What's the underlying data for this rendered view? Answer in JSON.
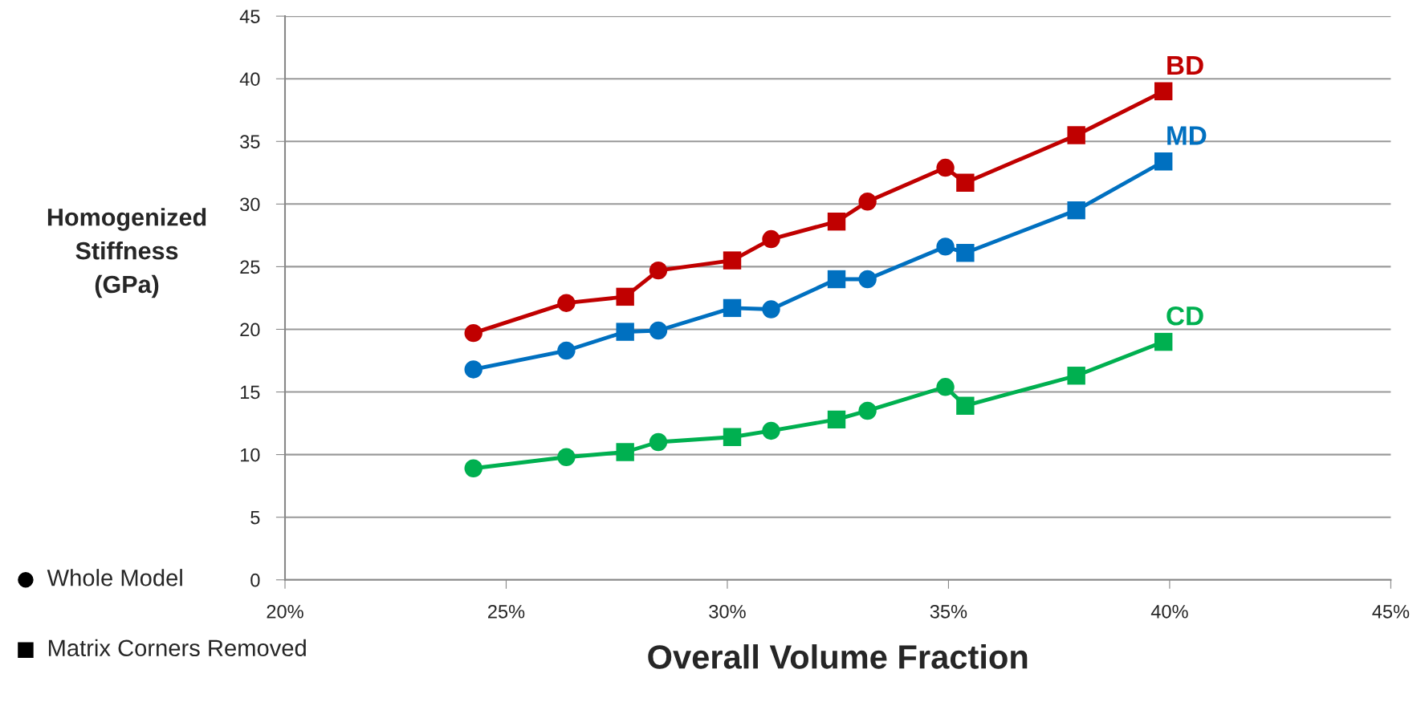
{
  "chart_data": {
    "type": "line",
    "xlabel": "Overall Volume Fraction",
    "ylabel": "Homogenized\nStiffness\n(GPa)",
    "x": [
      24.26,
      26.36,
      27.69,
      28.44,
      30.11,
      30.99,
      32.47,
      33.17,
      34.93,
      35.38,
      37.89,
      39.86
    ],
    "series": [
      {
        "name": "BD",
        "color": "#c00000",
        "values": [
          19.7,
          22.1,
          22.6,
          24.7,
          25.5,
          27.2,
          28.6,
          30.2,
          32.9,
          31.7,
          35.5,
          39.0
        ]
      },
      {
        "name": "MD",
        "color": "#0070c0",
        "values": [
          16.8,
          18.3,
          19.8,
          19.9,
          21.7,
          21.6,
          24.0,
          24.0,
          26.6,
          26.1,
          29.5,
          33.4
        ]
      },
      {
        "name": "CD",
        "color": "#00b050",
        "values": [
          8.9,
          9.8,
          10.2,
          11.0,
          11.4,
          11.9,
          12.8,
          13.5,
          15.4,
          13.9,
          16.3,
          19.0
        ]
      },
      {
        "type": "scatter",
        "marker": "circle",
        "color": "#000000",
        "x": [
          24.26,
          26.36,
          28.44,
          30.99,
          33.17,
          34.93,
          24.26,
          26.36,
          28.44,
          30.99,
          33.17,
          34.93,
          24.26,
          26.36,
          28.44,
          30.99,
          33.17,
          34.93
        ],
        "values": [
          19.7,
          22.1,
          24.7,
          27.2,
          30.2,
          32.9,
          16.8,
          18.3,
          19.9,
          21.6,
          24.0,
          26.6,
          8.9,
          9.8,
          11.0,
          11.9,
          13.5,
          15.4
        ],
        "colors": [
          "#c00000",
          "#c00000",
          "#c00000",
          "#c00000",
          "#c00000",
          "#c00000",
          "#0070c0",
          "#0070c0",
          "#0070c0",
          "#0070c0",
          "#0070c0",
          "#0070c0",
          "#00b050",
          "#00b050",
          "#00b050",
          "#00b050",
          "#00b050",
          "#00b050"
        ]
      },
      {
        "type": "scatter",
        "marker": "square",
        "color": "#000000",
        "x": [
          27.69,
          30.11,
          32.47,
          35.38,
          37.89,
          39.86,
          27.69,
          30.11,
          32.47,
          35.38,
          37.89,
          39.86,
          27.69,
          30.11,
          32.47,
          35.38,
          37.89,
          39.86
        ],
        "values": [
          22.6,
          25.5,
          28.6,
          31.7,
          35.5,
          39.0,
          19.8,
          21.7,
          24.0,
          26.1,
          29.5,
          33.4,
          10.2,
          11.4,
          12.8,
          13.9,
          16.3,
          19.0
        ],
        "colors": [
          "#c00000",
          "#c00000",
          "#c00000",
          "#c00000",
          "#c00000",
          "#c00000",
          "#0070c0",
          "#0070c0",
          "#0070c0",
          "#0070c0",
          "#0070c0",
          "#0070c0",
          "#00b050",
          "#00b050",
          "#00b050",
          "#00b050",
          "#00b050",
          "#00b050"
        ]
      }
    ],
    "xlim": [
      20,
      45
    ],
    "xticks": [
      {
        "value": 20,
        "label": "20%"
      },
      {
        "value": 25,
        "label": "25%"
      },
      {
        "value": 30,
        "label": "30%"
      },
      {
        "value": 35,
        "label": "35%"
      },
      {
        "value": 40,
        "label": "40%"
      },
      {
        "value": 45,
        "label": "45%"
      }
    ],
    "ylim": [
      0,
      45
    ],
    "yticks": [
      0,
      5,
      10,
      15,
      20,
      25,
      30,
      35,
      40,
      45
    ],
    "grid": "y",
    "annotations": [
      "Whole Model",
      "Matrix Corners Removed"
    ],
    "line_style": "solid"
  }
}
